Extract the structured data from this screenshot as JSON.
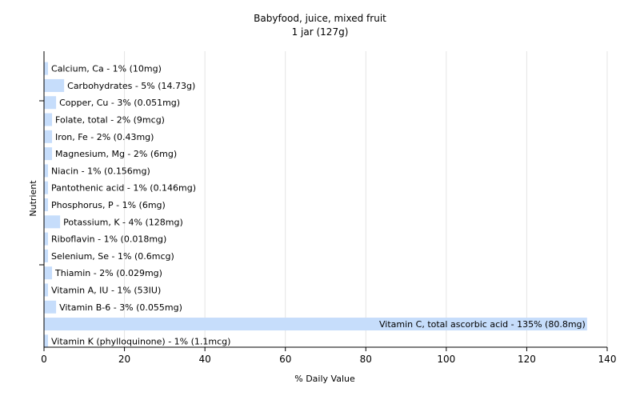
{
  "chart_data": {
    "type": "bar",
    "orientation": "horizontal",
    "title": "Babyfood, juice, mixed fruit",
    "subtitle": "1 jar (127g)",
    "xlabel": "% Daily Value",
    "ylabel": "Nutrient",
    "xlim": [
      0,
      140
    ],
    "xticks": [
      0,
      20,
      40,
      60,
      80,
      100,
      120,
      140
    ],
    "grid": true,
    "bar_color": "#c6ddfb",
    "categories": [
      "Calcium, Ca",
      "Carbohydrates",
      "Copper, Cu",
      "Folate, total",
      "Iron, Fe",
      "Magnesium, Mg",
      "Niacin",
      "Pantothenic acid",
      "Phosphorus, P",
      "Potassium, K",
      "Riboflavin",
      "Selenium, Se",
      "Thiamin",
      "Vitamin A, IU",
      "Vitamin B-6",
      "Vitamin C, total ascorbic acid",
      "Vitamin K (phylloquinone)"
    ],
    "values": [
      1,
      5,
      3,
      2,
      2,
      2,
      1,
      1,
      1,
      4,
      1,
      1,
      2,
      1,
      3,
      135,
      1
    ],
    "labels": [
      "Calcium, Ca - 1% (10mg)",
      "Carbohydrates - 5% (14.73g)",
      "Copper, Cu - 3% (0.051mg)",
      "Folate, total - 2% (9mcg)",
      "Iron, Fe - 2% (0.43mg)",
      "Magnesium, Mg - 2% (6mg)",
      "Niacin - 1% (0.156mg)",
      "Pantothenic acid - 1% (0.146mg)",
      "Phosphorus, P - 1% (6mg)",
      "Potassium, K - 4% (128mg)",
      "Riboflavin - 1% (0.018mg)",
      "Selenium, Se - 1% (0.6mcg)",
      "Thiamin - 2% (0.029mg)",
      "Vitamin A, IU - 1% (53IU)",
      "Vitamin B-6 - 3% (0.055mg)",
      "Vitamin C, total ascorbic acid - 135% (80.8mg)",
      "Vitamin K (phylloquinone) - 1% (1.1mcg)"
    ]
  }
}
